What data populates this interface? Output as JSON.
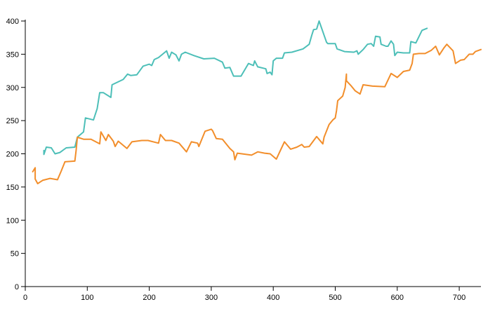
{
  "chart_data": {
    "type": "line",
    "title": "",
    "xlabel": "",
    "ylabel": "",
    "xlim": [
      0,
      735
    ],
    "ylim": [
      0,
      400
    ],
    "x_ticks": [
      0,
      100,
      200,
      300,
      400,
      500,
      600,
      700
    ],
    "y_ticks": [
      0,
      50,
      100,
      150,
      200,
      250,
      300,
      350,
      400
    ],
    "grid": false,
    "legend": "none",
    "series": [
      {
        "color": "#4dbfb8",
        "points": [
          [
            30,
            205
          ],
          [
            30,
            199
          ],
          [
            34,
            210
          ],
          [
            42,
            209
          ],
          [
            48,
            200
          ],
          [
            56,
            202
          ],
          [
            66,
            209
          ],
          [
            80,
            210
          ],
          [
            84,
            225
          ],
          [
            94,
            233
          ],
          [
            97,
            254
          ],
          [
            110,
            251
          ],
          [
            116,
            268
          ],
          [
            120,
            292
          ],
          [
            126,
            292
          ],
          [
            138,
            285
          ],
          [
            140,
            304
          ],
          [
            158,
            312
          ],
          [
            165,
            320
          ],
          [
            170,
            318
          ],
          [
            180,
            319
          ],
          [
            190,
            332
          ],
          [
            200,
            335
          ],
          [
            204,
            333
          ],
          [
            208,
            342
          ],
          [
            215,
            345
          ],
          [
            228,
            355
          ],
          [
            232,
            344
          ],
          [
            236,
            353
          ],
          [
            243,
            349
          ],
          [
            248,
            340
          ],
          [
            252,
            350
          ],
          [
            258,
            353
          ],
          [
            272,
            348
          ],
          [
            288,
            343
          ],
          [
            305,
            344
          ],
          [
            318,
            338
          ],
          [
            322,
            329
          ],
          [
            330,
            330
          ],
          [
            336,
            317
          ],
          [
            348,
            317
          ],
          [
            360,
            336
          ],
          [
            368,
            333
          ],
          [
            370,
            340
          ],
          [
            375,
            331
          ],
          [
            388,
            328
          ],
          [
            390,
            321
          ],
          [
            395,
            323
          ],
          [
            398,
            319
          ],
          [
            400,
            340
          ],
          [
            405,
            344
          ],
          [
            415,
            344
          ],
          [
            418,
            352
          ],
          [
            430,
            353
          ],
          [
            448,
            358
          ],
          [
            458,
            365
          ],
          [
            462,
            378
          ],
          [
            465,
            387
          ],
          [
            470,
            388
          ],
          [
            474,
            400
          ],
          [
            486,
            368
          ],
          [
            488,
            366
          ],
          [
            500,
            366
          ],
          [
            503,
            358
          ],
          [
            515,
            354
          ],
          [
            530,
            353
          ],
          [
            535,
            355
          ],
          [
            537,
            350
          ],
          [
            545,
            357
          ],
          [
            552,
            365
          ],
          [
            558,
            366
          ],
          [
            562,
            362
          ],
          [
            565,
            377
          ],
          [
            572,
            376
          ],
          [
            574,
            365
          ],
          [
            582,
            362
          ],
          [
            585,
            362
          ],
          [
            590,
            370
          ],
          [
            594,
            365
          ],
          [
            596,
            348
          ],
          [
            600,
            353
          ],
          [
            610,
            352
          ],
          [
            620,
            352
          ],
          [
            622,
            369
          ],
          [
            630,
            367
          ],
          [
            640,
            386
          ],
          [
            648,
            389
          ]
        ]
      },
      {
        "color": "#f28e2b",
        "points": [
          [
            12,
            173
          ],
          [
            16,
            179
          ],
          [
            16,
            162
          ],
          [
            20,
            155
          ],
          [
            28,
            160
          ],
          [
            40,
            163
          ],
          [
            52,
            161
          ],
          [
            58,
            174
          ],
          [
            64,
            188
          ],
          [
            80,
            189
          ],
          [
            82,
            205
          ],
          [
            84,
            225
          ],
          [
            94,
            222
          ],
          [
            106,
            222
          ],
          [
            120,
            215
          ],
          [
            122,
            233
          ],
          [
            130,
            220
          ],
          [
            134,
            229
          ],
          [
            142,
            219
          ],
          [
            145,
            211
          ],
          [
            150,
            219
          ],
          [
            164,
            208
          ],
          [
            172,
            218
          ],
          [
            188,
            220
          ],
          [
            198,
            220
          ],
          [
            215,
            216
          ],
          [
            218,
            229
          ],
          [
            226,
            220
          ],
          [
            236,
            220
          ],
          [
            248,
            216
          ],
          [
            260,
            203
          ],
          [
            268,
            218
          ],
          [
            278,
            216
          ],
          [
            280,
            211
          ],
          [
            290,
            234
          ],
          [
            300,
            237
          ],
          [
            302,
            235
          ],
          [
            308,
            223
          ],
          [
            318,
            222
          ],
          [
            330,
            208
          ],
          [
            336,
            203
          ],
          [
            338,
            191
          ],
          [
            342,
            201
          ],
          [
            365,
            198
          ],
          [
            375,
            203
          ],
          [
            386,
            201
          ],
          [
            395,
            200
          ],
          [
            405,
            192
          ],
          [
            418,
            218
          ],
          [
            428,
            207
          ],
          [
            438,
            210
          ],
          [
            446,
            214
          ],
          [
            450,
            210
          ],
          [
            458,
            211
          ],
          [
            470,
            226
          ],
          [
            480,
            215
          ],
          [
            482,
            225
          ],
          [
            490,
            244
          ],
          [
            496,
            251
          ],
          [
            500,
            254
          ],
          [
            502,
            265
          ],
          [
            504,
            280
          ],
          [
            512,
            287
          ],
          [
            516,
            300
          ],
          [
            518,
            320
          ],
          [
            518,
            310
          ],
          [
            525,
            303
          ],
          [
            532,
            295
          ],
          [
            540,
            290
          ],
          [
            545,
            304
          ],
          [
            560,
            302
          ],
          [
            580,
            301
          ],
          [
            590,
            321
          ],
          [
            600,
            315
          ],
          [
            610,
            324
          ],
          [
            620,
            326
          ],
          [
            624,
            336
          ],
          [
            626,
            350
          ],
          [
            635,
            351
          ],
          [
            645,
            351
          ],
          [
            655,
            356
          ],
          [
            662,
            362
          ],
          [
            668,
            349
          ],
          [
            675,
            359
          ],
          [
            680,
            365
          ],
          [
            690,
            355
          ],
          [
            694,
            336
          ],
          [
            702,
            341
          ],
          [
            708,
            342
          ],
          [
            716,
            350
          ],
          [
            722,
            350
          ],
          [
            726,
            354
          ],
          [
            735,
            357
          ]
        ]
      }
    ]
  }
}
